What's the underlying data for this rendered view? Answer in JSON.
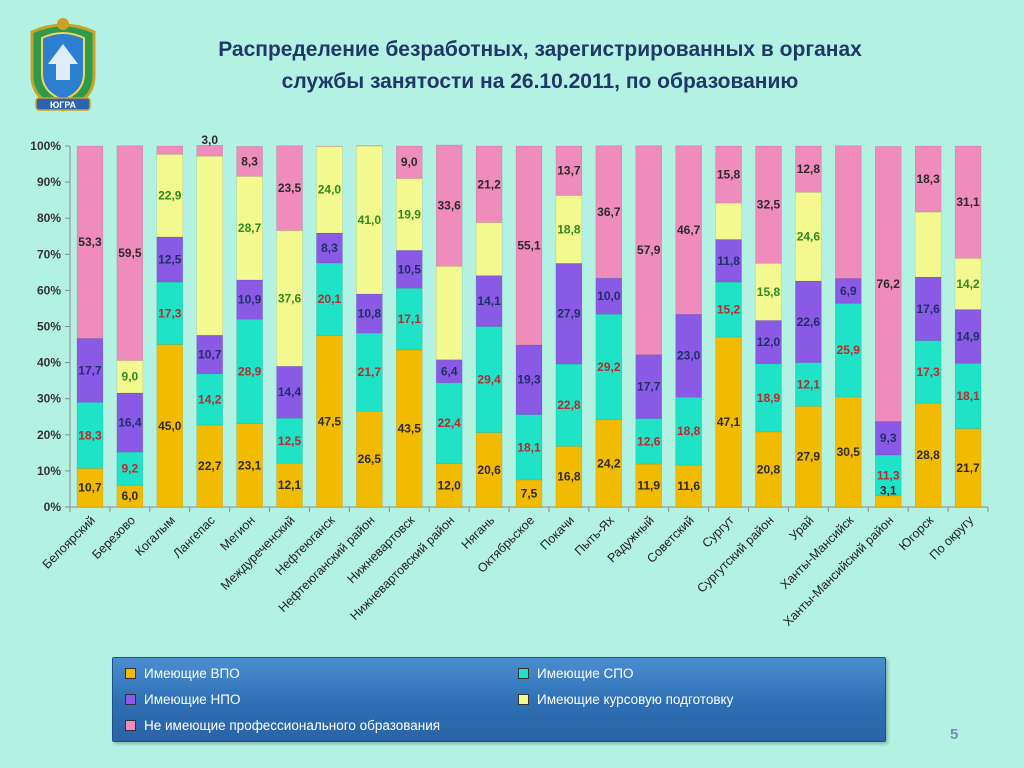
{
  "title": {
    "line1": "Распределение  безработных, зарегистрированных в органах",
    "line2": "службы занятости на 26.10.2011, по образованию"
  },
  "emblem_label": "ЮГРА",
  "page_number": "5",
  "colors": {
    "vpo": "#f2bb00",
    "spo": "#1ee3c6",
    "npo": "#8a5ae6",
    "kurs": "#f3f98f",
    "none": "#ef8cbc",
    "background": "#b3f2e3",
    "legend_bg": "#3478bf"
  },
  "chart_data": {
    "type": "bar",
    "stacked": "percent",
    "ylim": [
      0,
      100
    ],
    "yticks": [
      "0%",
      "10%",
      "20%",
      "30%",
      "40%",
      "50%",
      "60%",
      "70%",
      "80%",
      "90%",
      "100%"
    ],
    "grid": false,
    "legend_position": "bottom",
    "categories": [
      "Белоярский",
      "Березово",
      "Когалым",
      "Лангепас",
      "Мегион",
      "Междуреченский",
      "Нефтеюганск",
      "Нефтеюганский район",
      "Нижневартовск",
      "Нижневартовский район",
      "Нягань",
      "Октябрьское",
      "Покачи",
      "Пыть-Ях",
      "Радужный",
      "Советский",
      "Сургут",
      "Сургутский район",
      "Урай",
      "Ханты-Мансийск",
      "Ханты-Мансийский район",
      "Югорск",
      "По округу"
    ],
    "series": [
      {
        "name": "Имеющие ВПО",
        "values": [
          10.7,
          6.0,
          45.0,
          22.7,
          23.1,
          12.1,
          47.5,
          26.5,
          43.5,
          12.0,
          20.6,
          7.5,
          16.8,
          24.2,
          11.9,
          11.6,
          47.1,
          20.8,
          27.9,
          30.5,
          3.1,
          28.8,
          21.7
        ]
      },
      {
        "name": "Имеющие СПО",
        "values": [
          18.3,
          9.2,
          17.3,
          14.2,
          28.9,
          12.5,
          20.1,
          21.7,
          17.1,
          22.4,
          29.4,
          18.1,
          22.8,
          29.2,
          12.6,
          18.8,
          15.2,
          18.9,
          12.1,
          25.9,
          11.3,
          17.3,
          18.1
        ]
      },
      {
        "name": "Имеющие НПО",
        "values": [
          17.7,
          16.4,
          12.5,
          10.7,
          10.9,
          14.4,
          8.3,
          10.8,
          10.5,
          6.4,
          14.1,
          19.3,
          27.9,
          10.0,
          17.7,
          23.0,
          11.8,
          12.0,
          22.6,
          6.9,
          9.3,
          17.6,
          14.9
        ]
      },
      {
        "name": "Имеющие курсовую подготовку",
        "values": [
          0,
          9.0,
          22.9,
          49.6,
          28.7,
          37.6,
          24.0,
          41.0,
          19.9,
          25.9,
          14.7,
          0,
          18.8,
          0,
          0,
          0,
          10.1,
          15.8,
          24.6,
          0,
          0,
          18.0,
          14.2
        ]
      },
      {
        "name": "Не имеющие профессионального образования",
        "values": [
          53.3,
          59.5,
          2.3,
          3.0,
          8.3,
          23.5,
          0.1,
          0.1,
          9.0,
          33.6,
          21.2,
          55.1,
          13.7,
          36.7,
          57.9,
          46.7,
          15.8,
          32.5,
          12.8,
          36.8,
          76.2,
          18.3,
          31.1
        ]
      }
    ],
    "data_labels": [
      [
        "10,7",
        "18,3",
        "17,7",
        "",
        "53,3"
      ],
      [
        "6,0",
        "9,2",
        "16,4",
        "9,0",
        "59,5"
      ],
      [
        "45,0",
        "17,3",
        "12,5",
        "22,9",
        ""
      ],
      [
        "22,7",
        "14,2",
        "10,7",
        "",
        "3,0"
      ],
      [
        "23,1",
        "28,9",
        "10,9",
        "28,7",
        "8,3"
      ],
      [
        "12,1",
        "12,5",
        "14,4",
        "37,6",
        "23,5"
      ],
      [
        "47,5",
        "20,1",
        "8,3",
        "24,0",
        ""
      ],
      [
        "26,5",
        "21,7",
        "10,8",
        "41,0",
        ""
      ],
      [
        "43,5",
        "17,1",
        "10,5",
        "19,9",
        "9,0"
      ],
      [
        "12,0",
        "22,4",
        "6,4",
        "",
        "33,6"
      ],
      [
        "20,6",
        "29,4",
        "14,1",
        "",
        "21,2"
      ],
      [
        "7,5",
        "18,1",
        "19,3",
        "",
        "55,1"
      ],
      [
        "16,8",
        "22,8",
        "27,9",
        "18,8",
        "13,7"
      ],
      [
        "24,2",
        "29,2",
        "10,0",
        "",
        "36,7"
      ],
      [
        "11,9",
        "12,6",
        "17,7",
        "",
        "57,9"
      ],
      [
        "11,6",
        "18,8",
        "23,0",
        "",
        "46,7"
      ],
      [
        "47,1",
        "15,2",
        "11,8",
        "",
        "15,8"
      ],
      [
        "20,8",
        "18,9",
        "12,0",
        "15,8",
        "32,5"
      ],
      [
        "27,9",
        "12,1",
        "22,6",
        "24,6",
        "12,8"
      ],
      [
        "30,5",
        "25,9",
        "6,9",
        "",
        ""
      ],
      [
        "3,1",
        "11,3",
        "9,3",
        "",
        "76,2"
      ],
      [
        "28,8",
        "17,3",
        "17,6",
        "",
        "18,3"
      ],
      [
        "21,7",
        "18,1",
        "14,9",
        "14,2",
        "31,1"
      ]
    ]
  },
  "legend": {
    "items": [
      {
        "label": "Имеющие ВПО",
        "color": "#f2bb00"
      },
      {
        "label": "Имеющие СПО",
        "color": "#1ee3c6"
      },
      {
        "label": "Имеющие НПО",
        "color": "#8a5ae6"
      },
      {
        "label": "Имеющие курсовую подготовку",
        "color": "#f3f98f"
      },
      {
        "label": "Не имеющие профессионального образования",
        "color": "#ef8cbc"
      }
    ]
  }
}
